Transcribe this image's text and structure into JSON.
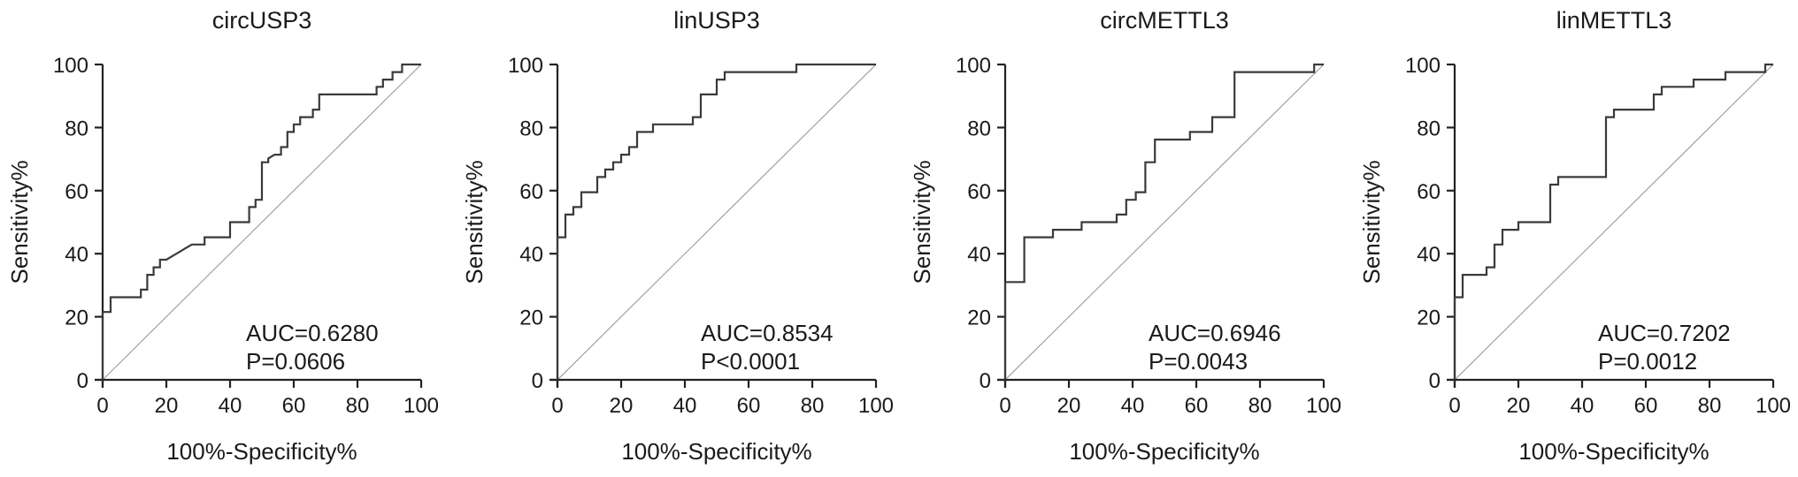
{
  "chart_data": [
    {
      "type": "line",
      "title": "circUSP3",
      "xlabel": "100%-Specificity%",
      "ylabel": "Sensitivity%",
      "xlim": [
        0,
        100
      ],
      "ylim": [
        0,
        100
      ],
      "xticks": [
        "0",
        "20",
        "40",
        "60",
        "80",
        "100"
      ],
      "yticks": [
        "0",
        "20",
        "40",
        "60",
        "80",
        "100"
      ],
      "auc_text": "AUC=0.6280",
      "p_text": "P=0.0606",
      "reference_line": true,
      "series": [
        {
          "x": [
            0,
            0,
            2.5,
            2.5,
            12,
            12,
            14,
            14,
            16,
            16,
            18,
            18,
            20,
            22,
            24,
            26,
            28,
            30,
            32,
            32,
            40,
            40,
            46,
            46,
            48,
            48,
            50,
            50,
            52,
            52,
            54,
            56,
            56,
            58,
            58,
            60,
            60,
            62,
            62,
            66,
            66,
            68,
            68,
            72,
            72,
            86,
            86,
            88,
            88,
            91,
            91,
            94,
            94,
            100
          ],
          "y": [
            0,
            21.5,
            21.5,
            26.2,
            26.2,
            28.6,
            28.6,
            33.3,
            33.3,
            35.7,
            35.7,
            38.1,
            38.1,
            39.3,
            40.5,
            41.7,
            42.9,
            42.9,
            42.9,
            45.2,
            45.2,
            50.0,
            50.0,
            54.8,
            54.8,
            57.1,
            57.1,
            69.0,
            69.0,
            70.2,
            71.4,
            71.4,
            73.8,
            73.8,
            78.6,
            78.6,
            81.0,
            81.0,
            83.3,
            83.3,
            85.7,
            85.7,
            90.5,
            90.5,
            90.5,
            90.5,
            92.9,
            92.9,
            95.2,
            95.2,
            97.6,
            97.6,
            100,
            100
          ]
        }
      ]
    },
    {
      "type": "line",
      "title": "linUSP3",
      "xlabel": "100%-Specificity%",
      "ylabel": "Sensitivity%",
      "xlim": [
        0,
        100
      ],
      "ylim": [
        0,
        100
      ],
      "xticks": [
        "0",
        "20",
        "40",
        "60",
        "80",
        "100"
      ],
      "yticks": [
        "0",
        "20",
        "40",
        "60",
        "80",
        "100"
      ],
      "auc_text": "AUC=0.8534",
      "p_text": "P<0.0001",
      "reference_line": true,
      "series": [
        {
          "x": [
            0,
            0,
            2.5,
            2.5,
            5,
            5,
            7.5,
            7.5,
            12.5,
            12.5,
            15,
            15,
            17.5,
            17.5,
            20,
            20,
            22.5,
            22.5,
            25,
            25,
            30,
            30,
            37.5,
            37.5,
            42.5,
            42.5,
            45,
            45,
            50,
            50,
            52.5,
            52.5,
            55,
            55,
            75,
            75,
            100
          ],
          "y": [
            0,
            45.2,
            45.2,
            52.4,
            52.4,
            54.8,
            54.8,
            59.5,
            59.5,
            64.3,
            64.3,
            66.7,
            66.7,
            69.0,
            69.0,
            71.4,
            71.4,
            73.8,
            73.8,
            78.6,
            78.6,
            81.0,
            81.0,
            81.0,
            81.0,
            83.3,
            83.3,
            90.5,
            90.5,
            95.2,
            95.2,
            97.6,
            97.6,
            97.6,
            97.6,
            100,
            100
          ]
        }
      ]
    },
    {
      "type": "line",
      "title": "circMETTL3",
      "xlabel": "100%-Specificity%",
      "ylabel": "Sensitivity%",
      "xlim": [
        0,
        100
      ],
      "ylim": [
        0,
        100
      ],
      "xticks": [
        "0",
        "20",
        "40",
        "60",
        "80",
        "100"
      ],
      "yticks": [
        "0",
        "20",
        "40",
        "60",
        "80",
        "100"
      ],
      "auc_text": "AUC=0.6946",
      "p_text": "P=0.0043",
      "reference_line": true,
      "series": [
        {
          "x": [
            0,
            0,
            6,
            6,
            15,
            15,
            24,
            24,
            35,
            35,
            38,
            38,
            41,
            41,
            44,
            44,
            47,
            47,
            50,
            50,
            58,
            58,
            65,
            65,
            72,
            72,
            97,
            97,
            100
          ],
          "y": [
            0,
            31.0,
            31.0,
            45.2,
            45.2,
            47.6,
            47.6,
            50.0,
            50.0,
            52.4,
            52.4,
            57.1,
            57.1,
            59.5,
            59.5,
            69.0,
            69.0,
            76.2,
            76.2,
            76.2,
            76.2,
            78.6,
            78.6,
            83.3,
            83.3,
            97.6,
            97.6,
            100,
            100
          ]
        }
      ]
    },
    {
      "type": "line",
      "title": "linMETTL3",
      "xlabel": "100%-Specificity%",
      "ylabel": "Sensitivity%",
      "xlim": [
        0,
        100
      ],
      "ylim": [
        0,
        100
      ],
      "xticks": [
        "0",
        "20",
        "40",
        "60",
        "80",
        "100"
      ],
      "yticks": [
        "0",
        "20",
        "40",
        "60",
        "80",
        "100"
      ],
      "auc_text": "AUC=0.7202",
      "p_text": "P=0.0012",
      "reference_line": true,
      "series": [
        {
          "x": [
            0,
            0,
            2.5,
            2.5,
            10,
            10,
            12.5,
            12.5,
            15,
            15,
            20,
            20,
            30,
            30,
            32.5,
            32.5,
            35,
            35,
            47.5,
            47.5,
            50,
            50,
            62.5,
            62.5,
            65,
            65,
            75,
            75,
            85,
            85,
            97.5,
            97.5,
            100
          ],
          "y": [
            0,
            26.2,
            26.2,
            33.3,
            33.3,
            35.7,
            35.7,
            42.9,
            42.9,
            47.6,
            47.6,
            50.0,
            50.0,
            61.9,
            61.9,
            64.3,
            64.3,
            64.3,
            64.3,
            83.3,
            83.3,
            85.7,
            85.7,
            90.5,
            90.5,
            92.9,
            92.9,
            95.2,
            95.2,
            97.6,
            97.6,
            100,
            100
          ]
        }
      ]
    }
  ]
}
